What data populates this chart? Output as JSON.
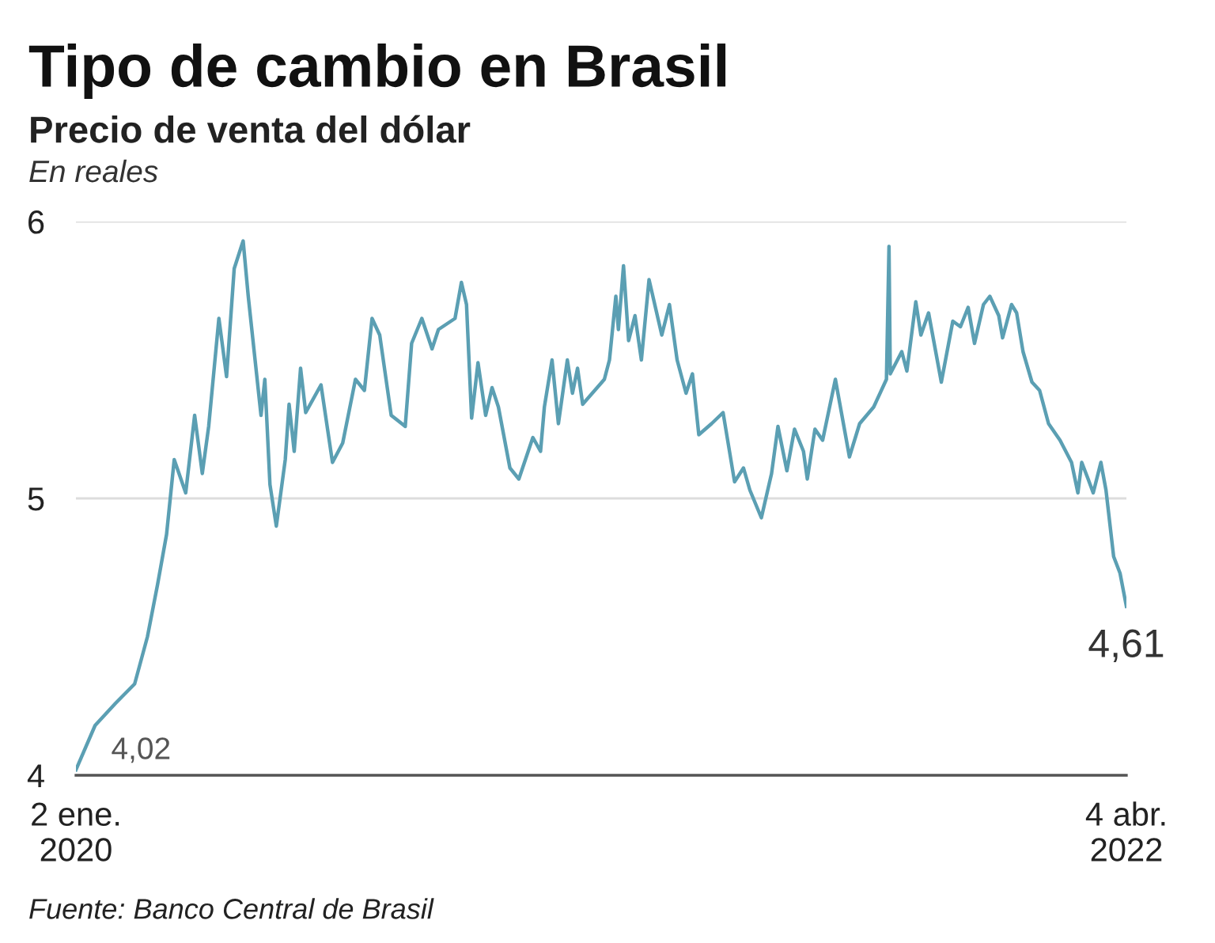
{
  "chart_data": {
    "type": "line",
    "title": "Tipo de cambio en Brasil",
    "subtitle": "Precio de venta del dólar",
    "ylabel": "En reales",
    "x": [
      "2020-01-02",
      "2020-01-17",
      "2020-02-02",
      "2020-02-17",
      "2020-02-27",
      "2020-03-06",
      "2020-03-13",
      "2020-03-19",
      "2020-03-28",
      "2020-04-04",
      "2020-04-10",
      "2020-04-15",
      "2020-04-23",
      "2020-04-29",
      "2020-05-05",
      "2020-05-12",
      "2020-05-16",
      "2020-05-26",
      "2020-05-29",
      "2020-06-02",
      "2020-06-07",
      "2020-06-14",
      "2020-06-17",
      "2020-06-21",
      "2020-06-26",
      "2020-06-30",
      "2020-07-12",
      "2020-07-21",
      "2020-07-29",
      "2020-08-08",
      "2020-08-15",
      "2020-08-21",
      "2020-08-27",
      "2020-09-05",
      "2020-09-16",
      "2020-09-21",
      "2020-09-29",
      "2020-10-07",
      "2020-10-12",
      "2020-10-25",
      "2020-10-30",
      "2020-11-03",
      "2020-11-07",
      "2020-11-12",
      "2020-11-18",
      "2020-11-23",
      "2020-11-28",
      "2020-12-07",
      "2020-12-14",
      "2020-12-25",
      "2020-12-31",
      "2021-01-03",
      "2021-01-09",
      "2021-01-14",
      "2021-01-21",
      "2021-01-25",
      "2021-01-29",
      "2021-02-02",
      "2021-02-19",
      "2021-02-23",
      "2021-02-28",
      "2021-03-02",
      "2021-03-06",
      "2021-03-10",
      "2021-03-15",
      "2021-03-20",
      "2021-03-26",
      "2021-04-05",
      "2021-04-11",
      "2021-04-17",
      "2021-04-24",
      "2021-04-29",
      "2021-05-04",
      "2021-05-14",
      "2021-05-23",
      "2021-06-01",
      "2021-06-08",
      "2021-06-13",
      "2021-06-22",
      "2021-06-30",
      "2021-07-05",
      "2021-07-12",
      "2021-07-18",
      "2021-07-25",
      "2021-07-28",
      "2021-08-03",
      "2021-08-09",
      "2021-08-19",
      "2021-08-30",
      "2021-09-07",
      "2021-09-18",
      "2021-09-28",
      "2021-09-30",
      "2021-10-01",
      "2021-10-10",
      "2021-10-14",
      "2021-10-21",
      "2021-10-25",
      "2021-10-31",
      "2021-11-10",
      "2021-11-19",
      "2021-11-25",
      "2021-12-01",
      "2021-12-06",
      "2021-12-13",
      "2021-12-18",
      "2021-12-25",
      "2021-12-28",
      "2022-01-04",
      "2022-01-08",
      "2022-01-13",
      "2022-01-20",
      "2022-01-26",
      "2022-02-02",
      "2022-02-11",
      "2022-02-20",
      "2022-02-25",
      "2022-02-28",
      "2022-03-05",
      "2022-03-09",
      "2022-03-15",
      "2022-03-19",
      "2022-03-25",
      "2022-03-30",
      "2022-04-04"
    ],
    "series": [
      {
        "color": "#5b9fb3",
        "values": [
          4.02,
          4.18,
          4.26,
          4.33,
          4.5,
          4.69,
          4.87,
          5.14,
          5.02,
          5.3,
          5.09,
          5.26,
          5.65,
          5.44,
          5.83,
          5.93,
          5.73,
          5.3,
          5.43,
          5.05,
          4.9,
          5.14,
          5.34,
          5.17,
          5.47,
          5.31,
          5.41,
          5.13,
          5.2,
          5.43,
          5.39,
          5.65,
          5.59,
          5.3,
          5.26,
          5.56,
          5.65,
          5.54,
          5.61,
          5.65,
          5.78,
          5.7,
          5.29,
          5.49,
          5.3,
          5.4,
          5.33,
          5.11,
          5.07,
          5.22,
          5.17,
          5.33,
          5.5,
          5.27,
          5.5,
          5.38,
          5.47,
          5.34,
          5.43,
          5.5,
          5.73,
          5.61,
          5.84,
          5.57,
          5.66,
          5.5,
          5.79,
          5.59,
          5.7,
          5.5,
          5.38,
          5.45,
          5.23,
          5.27,
          5.31,
          5.06,
          5.11,
          5.03,
          4.93,
          5.09,
          5.26,
          5.1,
          5.25,
          5.17,
          5.07,
          5.25,
          5.21,
          5.43,
          5.15,
          5.27,
          5.33,
          5.43,
          5.91,
          5.45,
          5.53,
          5.46,
          5.71,
          5.59,
          5.67,
          5.42,
          5.64,
          5.62,
          5.69,
          5.56,
          5.7,
          5.73,
          5.66,
          5.58,
          5.7,
          5.67,
          5.53,
          5.42,
          5.39,
          5.27,
          5.21,
          5.13,
          5.02,
          5.13,
          5.07,
          5.02,
          5.13,
          5.03,
          4.79,
          4.73,
          4.61
        ]
      }
    ],
    "xlim": [
      "2020-01-02",
      "2022-04-04"
    ],
    "xticks": [
      {
        "value": "2020-01-02",
        "label": "2 ene.\n2020"
      },
      {
        "value": "2022-04-04",
        "label": "4 abr.\n2022"
      }
    ],
    "ylim": [
      4,
      6
    ],
    "yticks": [
      4,
      5,
      6
    ],
    "grid": "y",
    "legend": false,
    "marker": "none",
    "line_style": "solid",
    "annotations": [
      {
        "text": "4,02",
        "x": "2020-01-02",
        "y": 4.02
      },
      {
        "text": "4,61",
        "x": "2022-04-04",
        "y": 4.61
      },
      "Fuente: Banco Central de Brasil"
    ]
  }
}
